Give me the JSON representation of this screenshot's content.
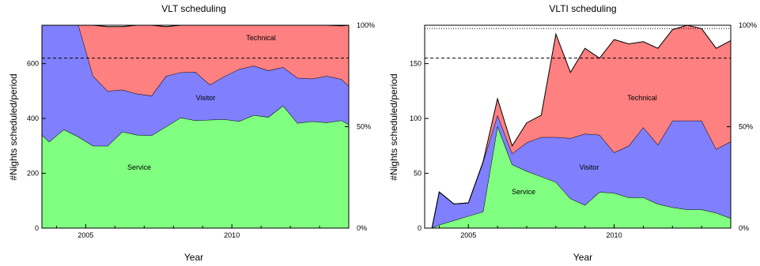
{
  "chart_data": [
    {
      "type": "area",
      "stacked": true,
      "title": "VLT scheduling",
      "xlabel": "Year",
      "ylabel": "#Nights scheduled/period",
      "xlim": [
        2003.5,
        2014.0
      ],
      "ylim": [
        0,
        740
      ],
      "xticks": [
        2005,
        2010
      ],
      "yticks": [
        0,
        200,
        400,
        600
      ],
      "right_ticks": [
        {
          "label": "0%",
          "value": 0
        },
        {
          "label": "50%",
          "value": 370
        },
        {
          "label": "100%",
          "value": 740
        }
      ],
      "dashed_reference_y": 620,
      "x": [
        2003.5,
        2003.75,
        2004.25,
        2004.75,
        2005.25,
        2005.75,
        2006.25,
        2006.75,
        2007.25,
        2007.75,
        2008.25,
        2008.75,
        2009.25,
        2009.75,
        2010.25,
        2010.75,
        2011.25,
        2011.75,
        2012.25,
        2012.75,
        2013.25,
        2013.75,
        2014.0
      ],
      "series": [
        {
          "name": "Service",
          "color": "#80ff80",
          "values": [
            340,
            315,
            360,
            333,
            300,
            300,
            352,
            340,
            338,
            370,
            403,
            393,
            395,
            397,
            390,
            412,
            405,
            447,
            383,
            390,
            385,
            393,
            378
          ]
        },
        {
          "name": "Visitor",
          "color": "#8080ff",
          "values": [
            400,
            425,
            380,
            407,
            255,
            200,
            153,
            150,
            145,
            185,
            165,
            177,
            128,
            157,
            190,
            180,
            170,
            140,
            165,
            155,
            170,
            150,
            140
          ]
        },
        {
          "name": "Technical",
          "color": "#ff8080",
          "values": [
            0,
            0,
            0,
            0,
            185,
            235,
            230,
            250,
            257,
            180,
            172,
            170,
            217,
            186,
            160,
            148,
            165,
            153,
            192,
            195,
            185,
            195,
            222
          ]
        }
      ],
      "top_band": {
        "color": "#ffffff",
        "values": [
          740,
          740,
          740,
          740,
          740,
          740,
          740,
          740,
          740,
          735,
          740,
          740,
          734,
          740,
          735,
          740,
          737,
          736,
          740,
          735,
          733,
          740,
          733
        ]
      },
      "annotations": [
        "Service",
        "Visitor",
        "Technical"
      ]
    },
    {
      "type": "area",
      "stacked": true,
      "title": "VLTI scheduling",
      "xlabel": "Year",
      "ylabel": "#Nights scheduled/period",
      "xlim": [
        2003.5,
        2014.0
      ],
      "ylim": [
        0,
        185
      ],
      "xticks": [
        2005,
        2010
      ],
      "yticks": [
        0,
        50,
        100,
        150
      ],
      "right_ticks": [
        {
          "label": "0%",
          "value": 0
        },
        {
          "label": "50%",
          "value": 92.5
        },
        {
          "label": "100%",
          "value": 185
        }
      ],
      "dashed_reference_y": 155,
      "dotted_reference_y": 182,
      "x": [
        2003.5,
        2003.75,
        2004.0,
        2004.5,
        2005.0,
        2005.5,
        2006.0,
        2006.5,
        2007.0,
        2007.5,
        2008.0,
        2008.5,
        2009.0,
        2009.5,
        2010.0,
        2010.5,
        2011.0,
        2011.5,
        2012.0,
        2012.5,
        2013.0,
        2013.5,
        2014.0
      ],
      "series": [
        {
          "name": "Service",
          "color": "#80ff80",
          "values": [
            0,
            0,
            3,
            7,
            11,
            15,
            93,
            58,
            52,
            47,
            42,
            27,
            21,
            33,
            32,
            28,
            28,
            22,
            19,
            17,
            17,
            14,
            9
          ]
        },
        {
          "name": "Visitor",
          "color": "#8080ff",
          "values": [
            0,
            0,
            30,
            15,
            12,
            45,
            10,
            10,
            26,
            36,
            41,
            55,
            65,
            52,
            37,
            47,
            64,
            54,
            79,
            81,
            81,
            58,
            70
          ]
        },
        {
          "name": "Technical",
          "color": "#ff8080",
          "values": [
            0,
            0,
            0,
            0,
            0,
            0,
            15,
            7,
            18,
            20,
            94,
            60,
            78,
            70,
            103,
            93,
            78,
            88,
            83,
            87,
            84,
            92,
            92
          ]
        }
      ],
      "annotations": [
        "Service",
        "Visitor",
        "Technical"
      ]
    }
  ]
}
